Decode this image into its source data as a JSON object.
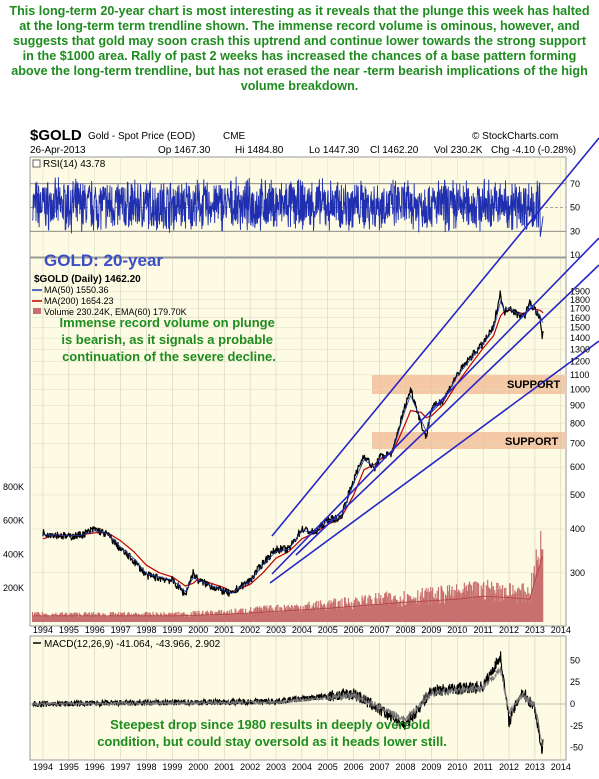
{
  "commentary": {
    "intro": "This long-term 20-year chart is most interesting as it reveals that the plunge this week has halted at the long-term term trendline shown. The immense record volume is ominous, however, and suggests that gold may soon crash this uptrend and continue lower towards the strong support in the $1000 area. Rally of past 2 weeks has increased the chances of a base pattern forming above the long-term trendline, but has not erased the near -term bearish implications of the high volume breakdown.",
    "volume_note": "Immense record volume on plunge is bearish, as it signals a probable continuation of the severe decline.",
    "macd_note": "Steepest drop since 1980 results in deeply oversold condition, but could stay oversold as it heads lower still."
  },
  "header": {
    "symbol": "$GOLD",
    "name": "Gold - Spot Price (EOD)",
    "exchange": "CME",
    "source": "© StockCharts.com",
    "date": "26-Apr-2013",
    "open": "Op 1467.30",
    "high": "Hi 1484.80",
    "low": "Lo 1447.30",
    "close": "Cl 1462.20",
    "volume": "Vol 230.2K",
    "change": "Chg -4.10 (-0.28%)"
  },
  "chart_title": "GOLD: 20-year",
  "legend": {
    "price": "$GOLD (Daily) 1462.20",
    "ma50": "MA(50) 1550.36",
    "ma200": "MA(200) 1654.23",
    "volume": "Volume 230.24K, EMA(60) 179.70K"
  },
  "support_labels": [
    "SUPPORT",
    "SUPPORT"
  ],
  "rsi": {
    "label": "RSI(14) 43.78",
    "ticks": [
      "70",
      "50",
      "30",
      "10"
    ]
  },
  "macd": {
    "label": "MACD(12,26,9) -41.064, -43.966, 2.902",
    "ticks": [
      "50",
      "25",
      "0",
      "-25",
      "-50"
    ]
  },
  "volume_axis": [
    "800K",
    "600K",
    "400K",
    "200K"
  ],
  "x_years": [
    "1994",
    "1995",
    "1996",
    "1997",
    "1998",
    "1999",
    "2000",
    "2001",
    "2002",
    "2003",
    "2004",
    "2005",
    "2006",
    "2007",
    "2008",
    "2009",
    "2010",
    "2011",
    "2012",
    "2013",
    "2014"
  ],
  "colors": {
    "commentary": "#1e8c1e",
    "price": "#000000",
    "ma50": "#1f3fb0",
    "ma200": "#c00000",
    "volume": "#c87070",
    "trendline": "#2626c8",
    "support_band": "#f6c9a6",
    "panel_background": "#fdfbe3",
    "title": "#3b4fc4"
  },
  "chart_data": [
    {
      "type": "line",
      "title": "RSI(14) 43.78",
      "ylim": [
        10,
        90
      ],
      "reference_lines": [
        70,
        50,
        30
      ],
      "x_range": [
        1993.5,
        2014.2
      ],
      "y_ticks": [
        70,
        50,
        30,
        10
      ]
    },
    {
      "type": "line",
      "title": "GOLD: 20-year",
      "log_scale": true,
      "x_range": [
        1993.5,
        2014.2
      ],
      "ylim": [
        220,
        2050
      ],
      "y_ticks": [
        1900,
        1800,
        1700,
        1600,
        1500,
        1400,
        1300,
        1200,
        1100,
        1000,
        900,
        800,
        700,
        600,
        500,
        400,
        300
      ],
      "x": [
        1994.0,
        1994.5,
        1995.0,
        1995.5,
        1996.0,
        1996.5,
        1997.0,
        1997.5,
        1998.0,
        1998.5,
        1999.0,
        1999.5,
        1999.8,
        2000.0,
        2000.5,
        2001.0,
        2001.3,
        2001.5,
        2002.0,
        2002.5,
        2003.0,
        2003.5,
        2004.0,
        2004.5,
        2005.0,
        2005.5,
        2006.0,
        2006.4,
        2006.8,
        2007.0,
        2007.5,
        2008.0,
        2008.2,
        2008.6,
        2008.8,
        2009.0,
        2009.5,
        2010.0,
        2010.5,
        2011.0,
        2011.4,
        2011.67,
        2011.8,
        2012.0,
        2012.3,
        2012.6,
        2012.8,
        2013.0,
        2013.2,
        2013.28,
        2013.32
      ],
      "series": [
        {
          "name": "$GOLD (Daily) 1462.20",
          "values": [
            390,
            385,
            380,
            385,
            400,
            385,
            350,
            325,
            295,
            290,
            285,
            260,
            300,
            285,
            275,
            265,
            260,
            270,
            285,
            320,
            350,
            350,
            400,
            390,
            425,
            430,
            550,
            650,
            590,
            640,
            660,
            900,
            1000,
            800,
            730,
            880,
            940,
            1100,
            1230,
            1350,
            1500,
            1890,
            1650,
            1720,
            1640,
            1620,
            1760,
            1690,
            1580,
            1390,
            1462
          ]
        },
        {
          "name": "MA(50) 1550.36",
          "values": [
            385,
            385,
            382,
            384,
            395,
            388,
            355,
            330,
            298,
            292,
            286,
            265,
            290,
            286,
            276,
            267,
            262,
            269,
            283,
            316,
            345,
            350,
            395,
            392,
            422,
            430,
            540,
            630,
            600,
            635,
            660,
            880,
            960,
            820,
            760,
            860,
            935,
            1090,
            1215,
            1345,
            1480,
            1780,
            1690,
            1700,
            1650,
            1625,
            1740,
            1690,
            1620,
            1560,
            1550
          ]
        },
        {
          "name": "MA(200) 1654.23",
          "values": [
            375,
            385,
            384,
            385,
            390,
            390,
            370,
            345,
            315,
            300,
            292,
            275,
            280,
            288,
            280,
            272,
            265,
            268,
            278,
            300,
            330,
            345,
            375,
            390,
            412,
            428,
            500,
            590,
            610,
            630,
            660,
            800,
            870,
            860,
            830,
            840,
            910,
            1040,
            1170,
            1310,
            1420,
            1620,
            1660,
            1680,
            1660,
            1640,
            1700,
            1690,
            1680,
            1660,
            1654
          ]
        }
      ]
    },
    {
      "type": "bar",
      "title": "Volume 230.24K, EMA(60) 179.70K",
      "ylim": [
        0,
        900000
      ],
      "y_ticks": [
        800000,
        600000,
        400000,
        200000
      ],
      "x": [
        1999.0,
        2001.0,
        2003.0,
        2005.0,
        2006.5,
        2008.0,
        2009.0,
        2010.0,
        2011.0,
        2012.0,
        2012.8,
        2013.28
      ],
      "values": [
        40000,
        50000,
        70000,
        90000,
        110000,
        130000,
        140000,
        150000,
        170000,
        160000,
        150000,
        430000
      ]
    },
    {
      "type": "line",
      "title": "MACD(12,26,9) -41.064, -43.966, 2.902",
      "ylim": [
        -62,
        62
      ],
      "y_ticks": [
        50,
        25,
        0,
        -25,
        -50
      ],
      "x_range": [
        1993.5,
        2014.2
      ],
      "x": [
        1994.0,
        2003.0,
        2006.0,
        2008.0,
        2009.0,
        2011.0,
        2011.67,
        2012.0,
        2012.5,
        2013.0,
        2013.28,
        2013.32
      ],
      "series": [
        {
          "name": "MACD(12,26,9)",
          "values": [
            0,
            3,
            12,
            -25,
            15,
            20,
            55,
            -20,
            15,
            -5,
            -55,
            -41.064
          ]
        },
        {
          "name": "Signal",
          "values": [
            0,
            2,
            10,
            -18,
            12,
            18,
            40,
            -10,
            10,
            -2,
            -45,
            -43.966
          ]
        }
      ]
    }
  ]
}
